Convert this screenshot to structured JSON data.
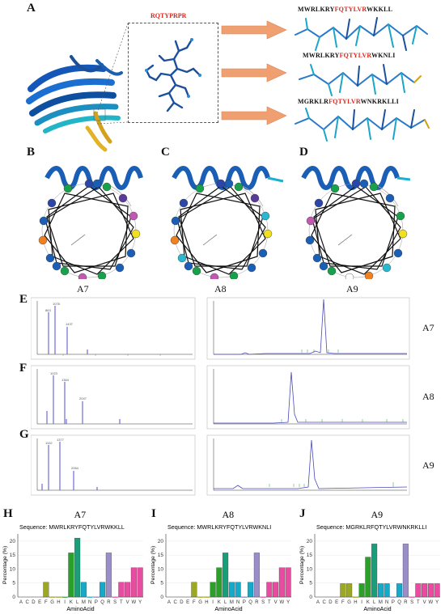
{
  "panel_labels": {
    "a": "A",
    "b": "B",
    "c": "C",
    "d": "D",
    "e": "E",
    "f": "F",
    "g": "G",
    "h": "H",
    "i": "I",
    "j": "J"
  },
  "panel_a": {
    "zoom_label": "RQTYPRPR",
    "seq1": {
      "pre": "MWRLKRY",
      "hl": "FQTYLVR",
      "post": "WKKLL"
    },
    "seq2": {
      "pre": "MWRLKRY",
      "hl": "FQTYLVR",
      "post": "WKNLI"
    },
    "seq3": {
      "pre": "MGRKLR",
      "hl": "FQTYLVR",
      "post": "WNKRKLLI"
    }
  },
  "helix_captions": {
    "b": "A7",
    "c": "A8",
    "d": "A9"
  },
  "trace_labels": {
    "e": "A7",
    "f": "A8",
    "g": "A9"
  },
  "colors": {
    "arrow": "#f0a070",
    "seq_highlight": "#e0261c",
    "ms_line": "#6a6ad8",
    "hplc_line": "#4a4ab8"
  },
  "chart_data": [
    {
      "type": "bar",
      "title": "A7",
      "subtitle": "Sequence: MWRLKRYFQTYLVRWKKLL",
      "xlabel": "AminoAcid",
      "ylabel": "Percentage (%)",
      "ylim": [
        0,
        22
      ],
      "yticks": [
        "0",
        "5",
        "10",
        "15",
        "20"
      ],
      "categories": [
        "A",
        "C",
        "D",
        "E",
        "F",
        "G",
        "H",
        "I",
        "K",
        "L",
        "M",
        "N",
        "P",
        "Q",
        "R",
        "S",
        "T",
        "V",
        "W",
        "Y"
      ],
      "values": [
        0,
        0,
        0,
        0,
        5.3,
        0,
        0,
        0,
        15.8,
        21.1,
        5.3,
        0,
        0,
        5.3,
        15.8,
        0,
        5.3,
        5.3,
        10.5,
        10.5
      ],
      "colors": [
        "#b8b8b8",
        "#b8b8b8",
        "#b8b8b8",
        "#b8b8b8",
        "#9ca822",
        "#9ca822",
        "#9ca822",
        "#2aa02a",
        "#2aa02a",
        "#1a9e7a",
        "#17a9c9",
        "#17a9c9",
        "#8888cc",
        "#17a9c9",
        "#9a8ec8",
        "#e84ca0",
        "#e84ca0",
        "#e84ca0",
        "#e84ca0",
        "#e84ca0"
      ]
    },
    {
      "type": "bar",
      "title": "A8",
      "subtitle": "Sequence: MWRLKRYFQTYLVRWKNLI",
      "xlabel": "AminoAcid",
      "ylabel": "Percentage (%)",
      "ylim": [
        0,
        22
      ],
      "yticks": [
        "0",
        "5",
        "10",
        "15",
        "20"
      ],
      "categories": [
        "A",
        "C",
        "D",
        "E",
        "F",
        "G",
        "H",
        "I",
        "K",
        "L",
        "M",
        "N",
        "P",
        "Q",
        "R",
        "S",
        "T",
        "V",
        "W",
        "Y"
      ],
      "values": [
        0,
        0,
        0,
        0,
        5.3,
        0,
        0,
        5.3,
        10.5,
        15.8,
        5.3,
        5.3,
        0,
        5.3,
        15.8,
        0,
        5.3,
        5.3,
        10.5,
        10.5
      ],
      "colors": [
        "#b8b8b8",
        "#b8b8b8",
        "#b8b8b8",
        "#b8b8b8",
        "#9ca822",
        "#9ca822",
        "#9ca822",
        "#2aa02a",
        "#2aa02a",
        "#1a9e7a",
        "#17a9c9",
        "#17a9c9",
        "#8888cc",
        "#17a9c9",
        "#9a8ec8",
        "#e84ca0",
        "#e84ca0",
        "#e84ca0",
        "#e84ca0",
        "#e84ca0"
      ]
    },
    {
      "type": "bar",
      "title": "A9",
      "subtitle": "Sequence: MGRKLRFQTYLVRWNKRKLLI",
      "xlabel": "AminoAcid",
      "ylabel": "Percentage (%)",
      "ylim": [
        0,
        22
      ],
      "yticks": [
        "0",
        "5",
        "10",
        "15",
        "20"
      ],
      "categories": [
        "A",
        "C",
        "D",
        "E",
        "F",
        "G",
        "H",
        "I",
        "K",
        "L",
        "M",
        "N",
        "P",
        "Q",
        "R",
        "S",
        "T",
        "V",
        "W",
        "Y"
      ],
      "values": [
        0,
        0,
        0,
        0,
        4.8,
        4.8,
        0,
        4.8,
        14.3,
        19.0,
        4.8,
        4.8,
        0,
        4.8,
        19.0,
        0,
        4.8,
        4.8,
        4.8,
        4.8
      ],
      "colors": [
        "#b8b8b8",
        "#b8b8b8",
        "#b8b8b8",
        "#b8b8b8",
        "#9ca822",
        "#9ca822",
        "#9ca822",
        "#2aa02a",
        "#2aa02a",
        "#1a9e7a",
        "#17a9c9",
        "#17a9c9",
        "#8888cc",
        "#17a9c9",
        "#9a8ec8",
        "#e84ca0",
        "#e84ca0",
        "#e84ca0",
        "#e84ca0",
        "#e84ca0"
      ]
    }
  ]
}
